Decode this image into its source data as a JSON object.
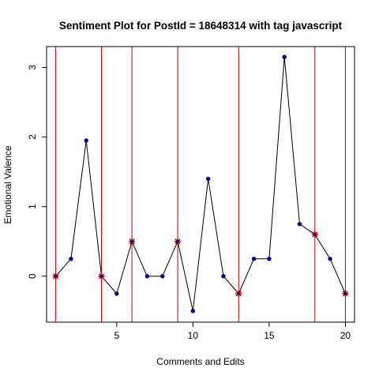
{
  "chart_data": {
    "type": "line",
    "title": "Sentiment Plot for PostId =  18648314  with tag  javascript",
    "xlabel": "Comments and Edits",
    "ylabel": "Emotional Valence",
    "xlim": [
      0.4,
      20.6
    ],
    "ylim": [
      -0.66,
      3.3
    ],
    "xticks": [
      5,
      10,
      15,
      20
    ],
    "yticks": [
      0,
      1,
      2,
      3
    ],
    "grid": false,
    "series": [
      {
        "x": [
          1,
          2,
          3,
          4,
          5,
          6,
          7,
          8,
          9,
          10,
          11,
          12,
          13,
          14,
          15,
          16,
          17,
          18,
          19,
          20
        ],
        "values": [
          0,
          0.25,
          1.95,
          0,
          -0.25,
          0.5,
          0,
          0,
          0.5,
          -0.5,
          1.4,
          0,
          -0.25,
          0.25,
          0.25,
          3.15,
          0.75,
          0.6,
          0.25,
          -0.25
        ],
        "point_color": "#00008b",
        "line_color": "#000000"
      }
    ],
    "highlight_points": {
      "x": [
        1,
        4,
        6,
        9,
        13,
        18,
        20
      ],
      "color": "#cc0000"
    },
    "vertical_lines": {
      "x": [
        1,
        4,
        6,
        9,
        13,
        18,
        20
      ],
      "color": "#cc0000"
    }
  }
}
